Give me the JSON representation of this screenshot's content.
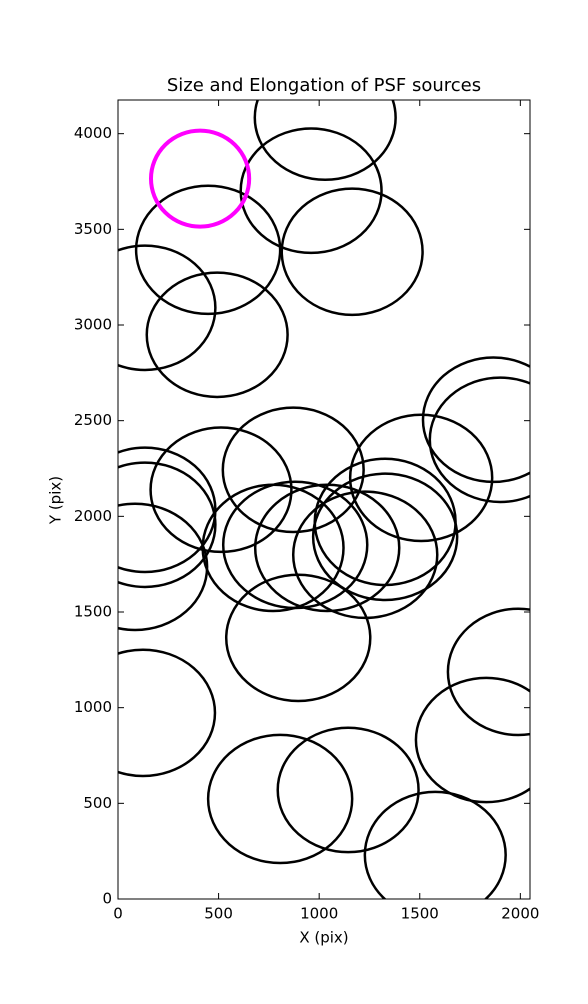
{
  "chart_data": {
    "type": "ellipse",
    "title": "Size and Elongation of PSF sources",
    "x_label": "X (pix)",
    "y_label": "Y (pix)",
    "xlim": [
      0,
      2048
    ],
    "ylim": [
      0,
      4176
    ],
    "xticks": [
      0,
      500,
      1000,
      1500,
      2000
    ],
    "yticks": [
      0,
      500,
      1000,
      1500,
      2000,
      2500,
      3000,
      3500,
      4000
    ],
    "series": [
      {
        "color": "#000000",
        "x": [
          1030,
          960,
          448,
          1164,
          134,
          493,
          1866,
          1900,
          1507,
          871,
          512,
          134,
          134,
          85,
          771,
          881,
          1040,
          1328,
          1328,
          1229,
          896,
          1990,
          1831,
          124,
          806,
          1144,
          1577
        ],
        "y": [
          4084,
          3702,
          3393,
          3383,
          3090,
          2949,
          2505,
          2400,
          2201,
          2243,
          2139,
          2034,
          1956,
          1736,
          1835,
          1851,
          1835,
          1971,
          1893,
          1799,
          1365,
          1187,
          831,
          973,
          523,
          570,
          230
        ],
        "width": [
          700,
          700,
          716,
          700,
          700,
          700,
          700,
          700,
          706,
          700,
          700,
          700,
          700,
          716,
          700,
          716,
          716,
          700,
          716,
          716,
          716,
          700,
          700,
          716,
          716,
          700,
          700
        ],
        "height": [
          650,
          650,
          670,
          660,
          650,
          650,
          650,
          650,
          660,
          650,
          650,
          650,
          650,
          660,
          660,
          660,
          660,
          660,
          660,
          660,
          660,
          660,
          650,
          660,
          670,
          650,
          660
        ]
      },
      {
        "color": "#ff00ff",
        "x": [
          408
        ],
        "y": [
          3765
        ],
        "width": [
          488
        ],
        "height": [
          502
        ]
      }
    ]
  }
}
